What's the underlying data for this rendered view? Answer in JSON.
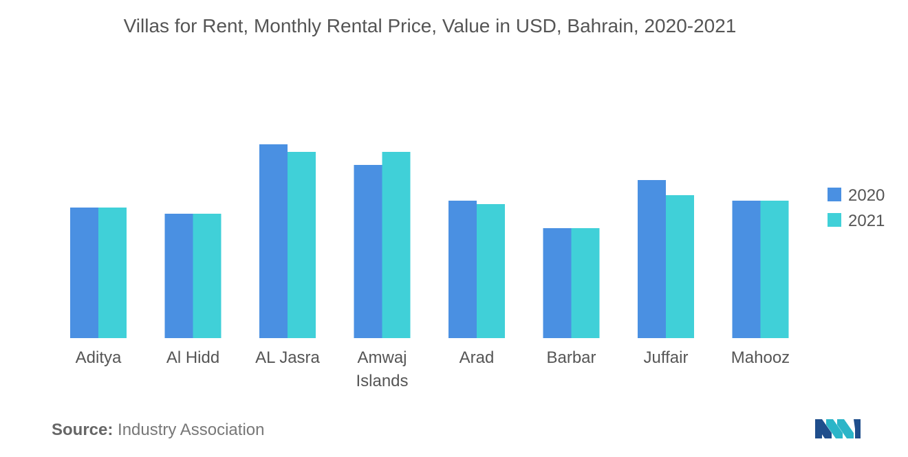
{
  "chart_data": {
    "type": "bar",
    "title": "Villas for Rent, Monthly Rental Price, Value in USD, Bahrain, 2020-2021",
    "categories": [
      [
        "Aditya"
      ],
      [
        "Al Hidd"
      ],
      [
        "AL Jasra"
      ],
      [
        "Amwaj",
        "Islands"
      ],
      [
        "Arad"
      ],
      [
        "Barbar"
      ],
      [
        "Juffair"
      ],
      [
        "Mahooz"
      ]
    ],
    "series": [
      {
        "name": "2020",
        "color": "#4a90e2",
        "values": [
          1900,
          1810,
          2820,
          2520,
          2000,
          1600,
          2300,
          2000
        ]
      },
      {
        "name": "2021",
        "color": "#40d0d8",
        "values": [
          1900,
          1810,
          2710,
          2710,
          1950,
          1600,
          2080,
          2000
        ]
      }
    ],
    "xlabel": "",
    "ylabel": "",
    "ylim": [
      0,
      3000
    ],
    "grid": false,
    "legend_position": "right"
  },
  "footer": {
    "source_label": "Source:",
    "source_text": "Industry Association"
  },
  "logo": {
    "name": "mordor-intelligence-logo-icon",
    "colors": [
      "#1f4e8c",
      "#2bb5c8"
    ]
  }
}
